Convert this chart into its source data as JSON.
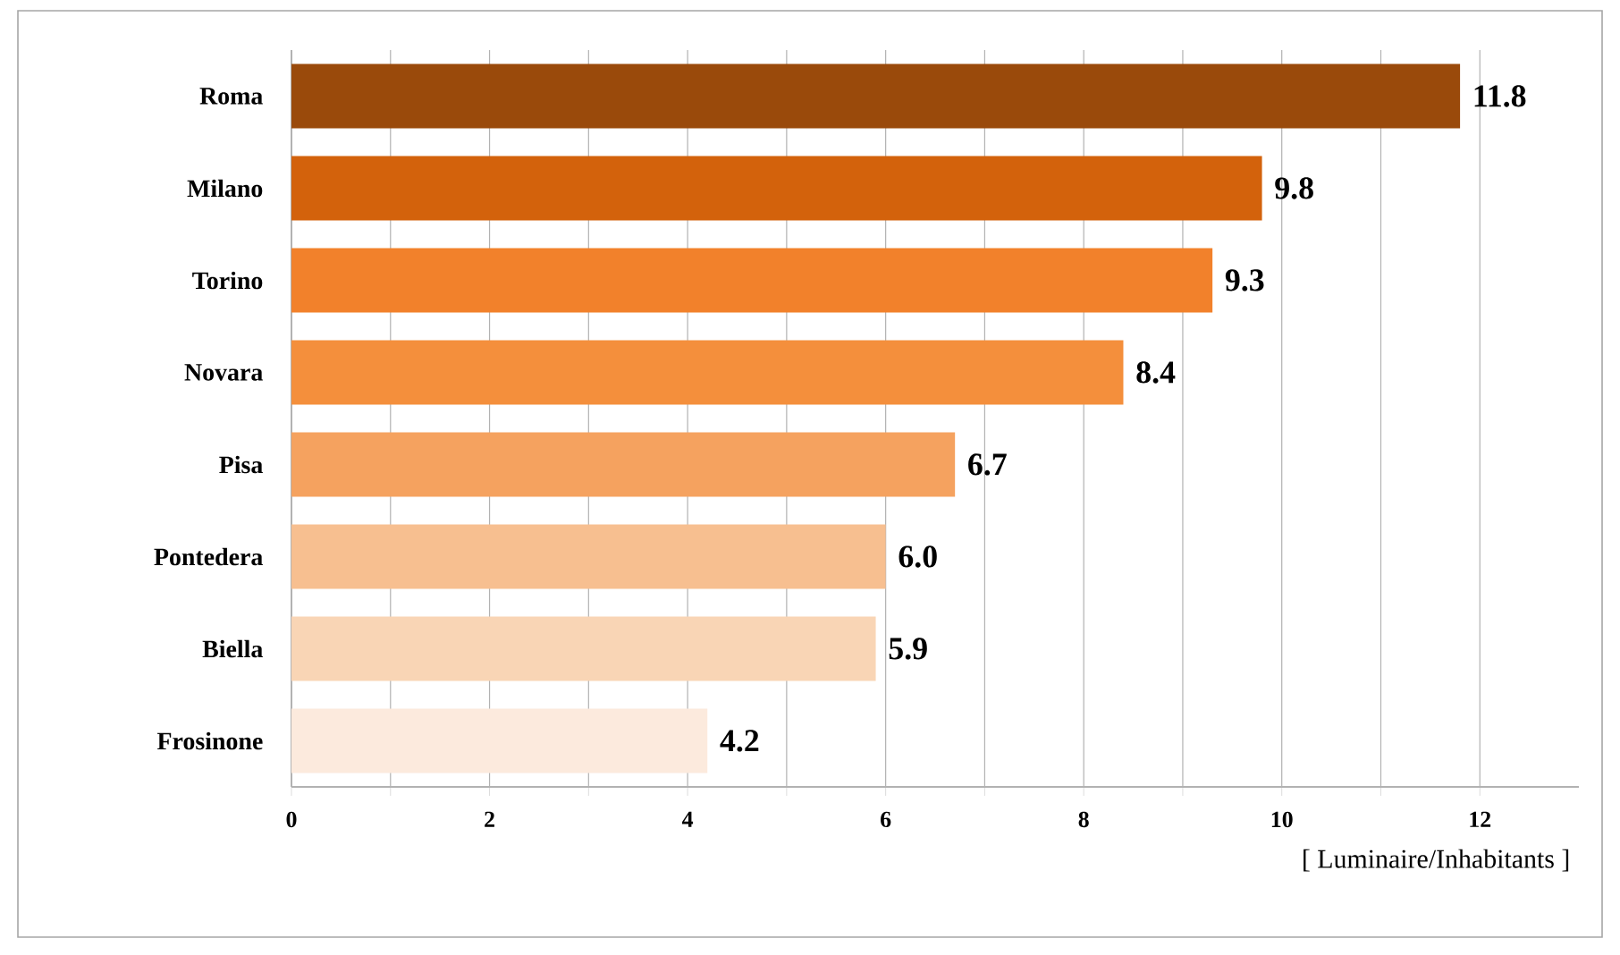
{
  "chart_data": {
    "type": "bar",
    "orientation": "horizontal",
    "xlabel": "[ Luminaire/Inhabitants ]",
    "categories": [
      "Roma",
      "Milano",
      "Torino",
      "Novara",
      "Pisa",
      "Pontedera",
      "Biella",
      "Frosinone"
    ],
    "values": [
      11.8,
      9.8,
      9.3,
      8.4,
      6.7,
      6.0,
      5.9,
      4.2
    ],
    "value_labels": [
      "11.8",
      "9.8",
      "9.3",
      "8.4",
      "6.7",
      "6.0",
      "5.9",
      "4.2"
    ],
    "colors": [
      "#9a4a0b",
      "#d3620c",
      "#f2812b",
      "#f48f3c",
      "#f5a25f",
      "#f7bf90",
      "#f9d5b5",
      "#fceadd"
    ],
    "xlim": [
      0,
      13
    ],
    "xticks": [
      0,
      {
        "value": 1,
        "label": null
      },
      2,
      {
        "value": 3,
        "label": null
      },
      4,
      {
        "value": 5,
        "label": null
      },
      6,
      {
        "value": 7,
        "label": null
      },
      8,
      {
        "value": 9,
        "label": null
      },
      10,
      {
        "value": 11,
        "label": null
      },
      12
    ],
    "grid": "x"
  }
}
